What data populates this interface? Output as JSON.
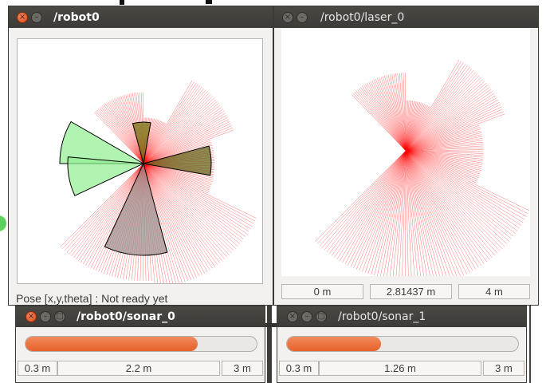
{
  "windows": {
    "robot0": {
      "title": "/robot0",
      "pose_label": "Pose [x,y,theta] : Not ready yet"
    },
    "laser": {
      "title": "/robot0/laser_0",
      "min_label": "0 m",
      "value_label": "2.81437 m",
      "max_label": "4 m"
    },
    "sonar0": {
      "title": "/robot0/sonar_0",
      "min_label": "0.3 m",
      "value_label": "2.2 m",
      "max_label": "3 m",
      "level": 0.7447
    },
    "sonar1": {
      "title": "/robot0/sonar_1",
      "min_label": "0.3 m",
      "value_label": "1.26 m",
      "max_label": "3 m",
      "level": 0.4072
    }
  },
  "colors": {
    "titlebar": "#3c3b37",
    "window_bg": "#f2f1f0",
    "laser_ray": "#ff0000",
    "sonar_free": "#90ee90",
    "sonar_hit": "#8b0000",
    "progress_fill": "#e5612a"
  },
  "icons": [
    "close-icon",
    "minimize-icon",
    "maximize-icon"
  ]
}
